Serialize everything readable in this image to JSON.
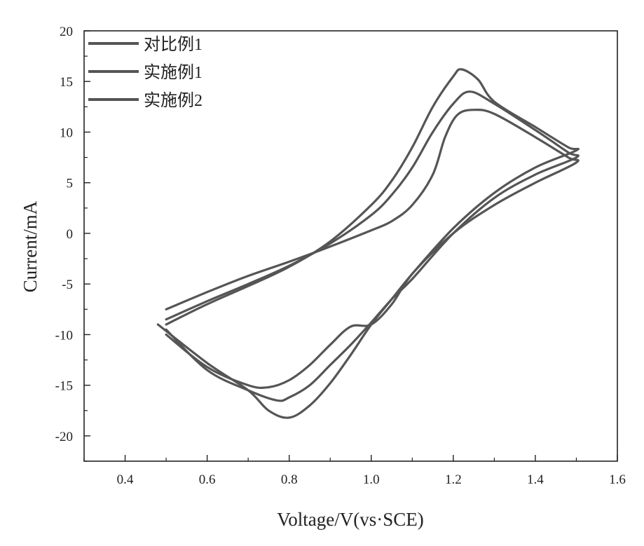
{
  "chart_data": {
    "type": "line",
    "title": "",
    "xlabel": "Voltage/V(vs·SCE)",
    "ylabel": "Current/mA",
    "xlim": [
      0.3,
      1.6
    ],
    "ylim": [
      -22.5,
      20
    ],
    "xticks": [
      "0.4",
      "0.6",
      "0.8",
      "1.0",
      "1.2",
      "1.4",
      "1.6"
    ],
    "yticks": [
      "20",
      "15",
      "10",
      "5",
      "0",
      "-5",
      "-10",
      "-15",
      "-20"
    ],
    "grid": false,
    "legend_position": "top-left",
    "line_color": "#555555",
    "series": [
      {
        "name": "对比例1",
        "points": [
          [
            0.5,
            -7.5
          ],
          [
            0.6,
            -5.8
          ],
          [
            0.7,
            -4.2
          ],
          [
            0.8,
            -2.8
          ],
          [
            0.9,
            -1.3
          ],
          [
            1.0,
            0.3
          ],
          [
            1.05,
            1.2
          ],
          [
            1.1,
            2.8
          ],
          [
            1.15,
            5.8
          ],
          [
            1.18,
            9.5
          ],
          [
            1.21,
            11.7
          ],
          [
            1.25,
            12.2
          ],
          [
            1.3,
            11.8
          ],
          [
            1.4,
            9.5
          ],
          [
            1.48,
            7.5
          ],
          [
            1.5,
            7.0
          ],
          [
            1.4,
            5.0
          ],
          [
            1.3,
            2.8
          ],
          [
            1.2,
            0.0
          ],
          [
            1.1,
            -4.0
          ],
          [
            1.05,
            -7.0
          ],
          [
            1.0,
            -9.0
          ],
          [
            0.95,
            -9.2
          ],
          [
            0.9,
            -11.0
          ],
          [
            0.85,
            -13.0
          ],
          [
            0.8,
            -14.5
          ],
          [
            0.75,
            -15.2
          ],
          [
            0.7,
            -15.0
          ],
          [
            0.6,
            -13.2
          ],
          [
            0.5,
            -10.0
          ]
        ]
      },
      {
        "name": "实施例1",
        "points": [
          [
            0.5,
            -8.5
          ],
          [
            0.6,
            -6.7
          ],
          [
            0.7,
            -5.0
          ],
          [
            0.8,
            -3.2
          ],
          [
            0.9,
            -1.0
          ],
          [
            1.0,
            1.8
          ],
          [
            1.05,
            3.8
          ],
          [
            1.1,
            6.5
          ],
          [
            1.15,
            10.0
          ],
          [
            1.2,
            12.8
          ],
          [
            1.24,
            14.0
          ],
          [
            1.3,
            12.8
          ],
          [
            1.4,
            10.2
          ],
          [
            1.48,
            8.0
          ],
          [
            1.5,
            7.5
          ],
          [
            1.4,
            5.8
          ],
          [
            1.3,
            3.5
          ],
          [
            1.2,
            0.0
          ],
          [
            1.1,
            -4.5
          ],
          [
            1.05,
            -6.5
          ],
          [
            1.0,
            -8.8
          ],
          [
            0.95,
            -11.0
          ],
          [
            0.9,
            -13.0
          ],
          [
            0.85,
            -15.0
          ],
          [
            0.8,
            -16.2
          ],
          [
            0.77,
            -16.5
          ],
          [
            0.7,
            -15.5
          ],
          [
            0.6,
            -13.5
          ],
          [
            0.5,
            -9.5
          ]
        ]
      },
      {
        "name": "实施例2",
        "points": [
          [
            0.5,
            -9.0
          ],
          [
            0.6,
            -7.0
          ],
          [
            0.7,
            -5.2
          ],
          [
            0.8,
            -3.3
          ],
          [
            0.9,
            -0.8
          ],
          [
            1.0,
            2.8
          ],
          [
            1.05,
            5.2
          ],
          [
            1.1,
            8.5
          ],
          [
            1.15,
            12.5
          ],
          [
            1.2,
            15.5
          ],
          [
            1.22,
            16.2
          ],
          [
            1.26,
            15.2
          ],
          [
            1.3,
            13.0
          ],
          [
            1.4,
            10.5
          ],
          [
            1.48,
            8.5
          ],
          [
            1.5,
            8.2
          ],
          [
            1.4,
            6.5
          ],
          [
            1.3,
            4.0
          ],
          [
            1.2,
            0.5
          ],
          [
            1.1,
            -4.0
          ],
          [
            1.05,
            -6.5
          ],
          [
            1.0,
            -9.0
          ],
          [
            0.95,
            -12.0
          ],
          [
            0.9,
            -14.8
          ],
          [
            0.85,
            -17.0
          ],
          [
            0.8,
            -18.2
          ],
          [
            0.75,
            -17.5
          ],
          [
            0.7,
            -15.5
          ],
          [
            0.6,
            -12.8
          ],
          [
            0.48,
            -9.0
          ]
        ]
      }
    ]
  }
}
